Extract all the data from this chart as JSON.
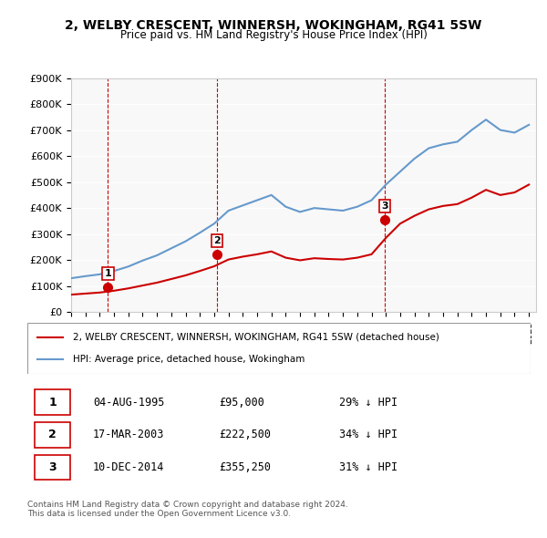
{
  "title": "2, WELBY CRESCENT, WINNERSH, WOKINGHAM, RG41 5SW",
  "subtitle": "Price paid vs. HM Land Registry's House Price Index (HPI)",
  "ylabel": "",
  "ylim": [
    0,
    900000
  ],
  "yticks": [
    0,
    100000,
    200000,
    300000,
    400000,
    500000,
    600000,
    700000,
    800000,
    900000
  ],
  "ytick_labels": [
    "£0",
    "£100K",
    "£200K",
    "£300K",
    "£400K",
    "£500K",
    "£600K",
    "£700K",
    "£800K",
    "£900K"
  ],
  "xlim_start": 1993.0,
  "xlim_end": 2025.5,
  "sale_dates": [
    1995.58,
    2003.21,
    2014.94
  ],
  "sale_prices": [
    95000,
    222500,
    355250
  ],
  "sale_labels": [
    "1",
    "2",
    "3"
  ],
  "red_color": "#cc0000",
  "blue_color": "#6699cc",
  "bg_color": "#f0f0f0",
  "hatch_color": "#cccccc",
  "legend_entries": [
    "2, WELBY CRESCENT, WINNERSH, WOKINGHAM, RG41 5SW (detached house)",
    "HPI: Average price, detached house, Wokingham"
  ],
  "table_data": [
    [
      "1",
      "04-AUG-1995",
      "£95,000",
      "29% ↓ HPI"
    ],
    [
      "2",
      "17-MAR-2003",
      "£222,500",
      "34% ↓ HPI"
    ],
    [
      "3",
      "10-DEC-2014",
      "£355,250",
      "31% ↓ HPI"
    ]
  ],
  "footnote": "Contains HM Land Registry data © Crown copyright and database right 2024.\nThis data is licensed under the Open Government Licence v3.0.",
  "hpi_years": [
    1993,
    1994,
    1995,
    1996,
    1997,
    1998,
    1999,
    2000,
    2001,
    2002,
    2003,
    2004,
    2005,
    2006,
    2007,
    2008,
    2009,
    2010,
    2011,
    2012,
    2013,
    2014,
    2015,
    2016,
    2017,
    2018,
    2019,
    2020,
    2021,
    2022,
    2023,
    2024,
    2025
  ],
  "hpi_values": [
    130000,
    138000,
    145000,
    158000,
    175000,
    198000,
    218000,
    245000,
    272000,
    305000,
    340000,
    390000,
    410000,
    430000,
    450000,
    405000,
    385000,
    400000,
    395000,
    390000,
    405000,
    430000,
    490000,
    540000,
    590000,
    630000,
    645000,
    655000,
    700000,
    740000,
    700000,
    690000,
    720000
  ],
  "red_line_years": [
    1993,
    1994,
    1995,
    1996,
    1997,
    1998,
    1999,
    2000,
    2001,
    2002,
    2003,
    2004,
    2005,
    2006,
    2007,
    2008,
    2009,
    2010,
    2011,
    2012,
    2013,
    2014,
    2015,
    2016,
    2017,
    2018,
    2019,
    2020,
    2021,
    2022,
    2023,
    2024,
    2025
  ],
  "red_line_values": [
    67000,
    71000,
    75000,
    82000,
    91000,
    102000,
    113000,
    127000,
    141000,
    158000,
    176000,
    202000,
    213000,
    222000,
    233000,
    209000,
    199000,
    207000,
    204000,
    202000,
    209000,
    222000,
    285000,
    340000,
    370000,
    395000,
    408000,
    415000,
    440000,
    470000,
    450000,
    460000,
    490000
  ]
}
